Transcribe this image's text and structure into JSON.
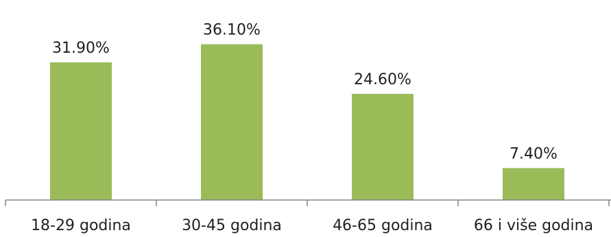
{
  "chart_data": {
    "type": "bar",
    "categories": [
      "18-29 godina",
      "30-45 godina",
      "46-65 godina",
      "66 i više godina"
    ],
    "values": [
      31.9,
      36.1,
      24.6,
      7.4
    ],
    "data_labels": [
      "31.90%",
      "36.10%",
      "24.60%",
      "7.40%"
    ],
    "title": "",
    "xlabel": "",
    "ylabel": "",
    "ylim": [
      0,
      40
    ],
    "grid": false,
    "legend": "none",
    "colors": {
      "bar": "#9bbb59",
      "axis": "#868686",
      "text": "#1f1f1f"
    }
  }
}
